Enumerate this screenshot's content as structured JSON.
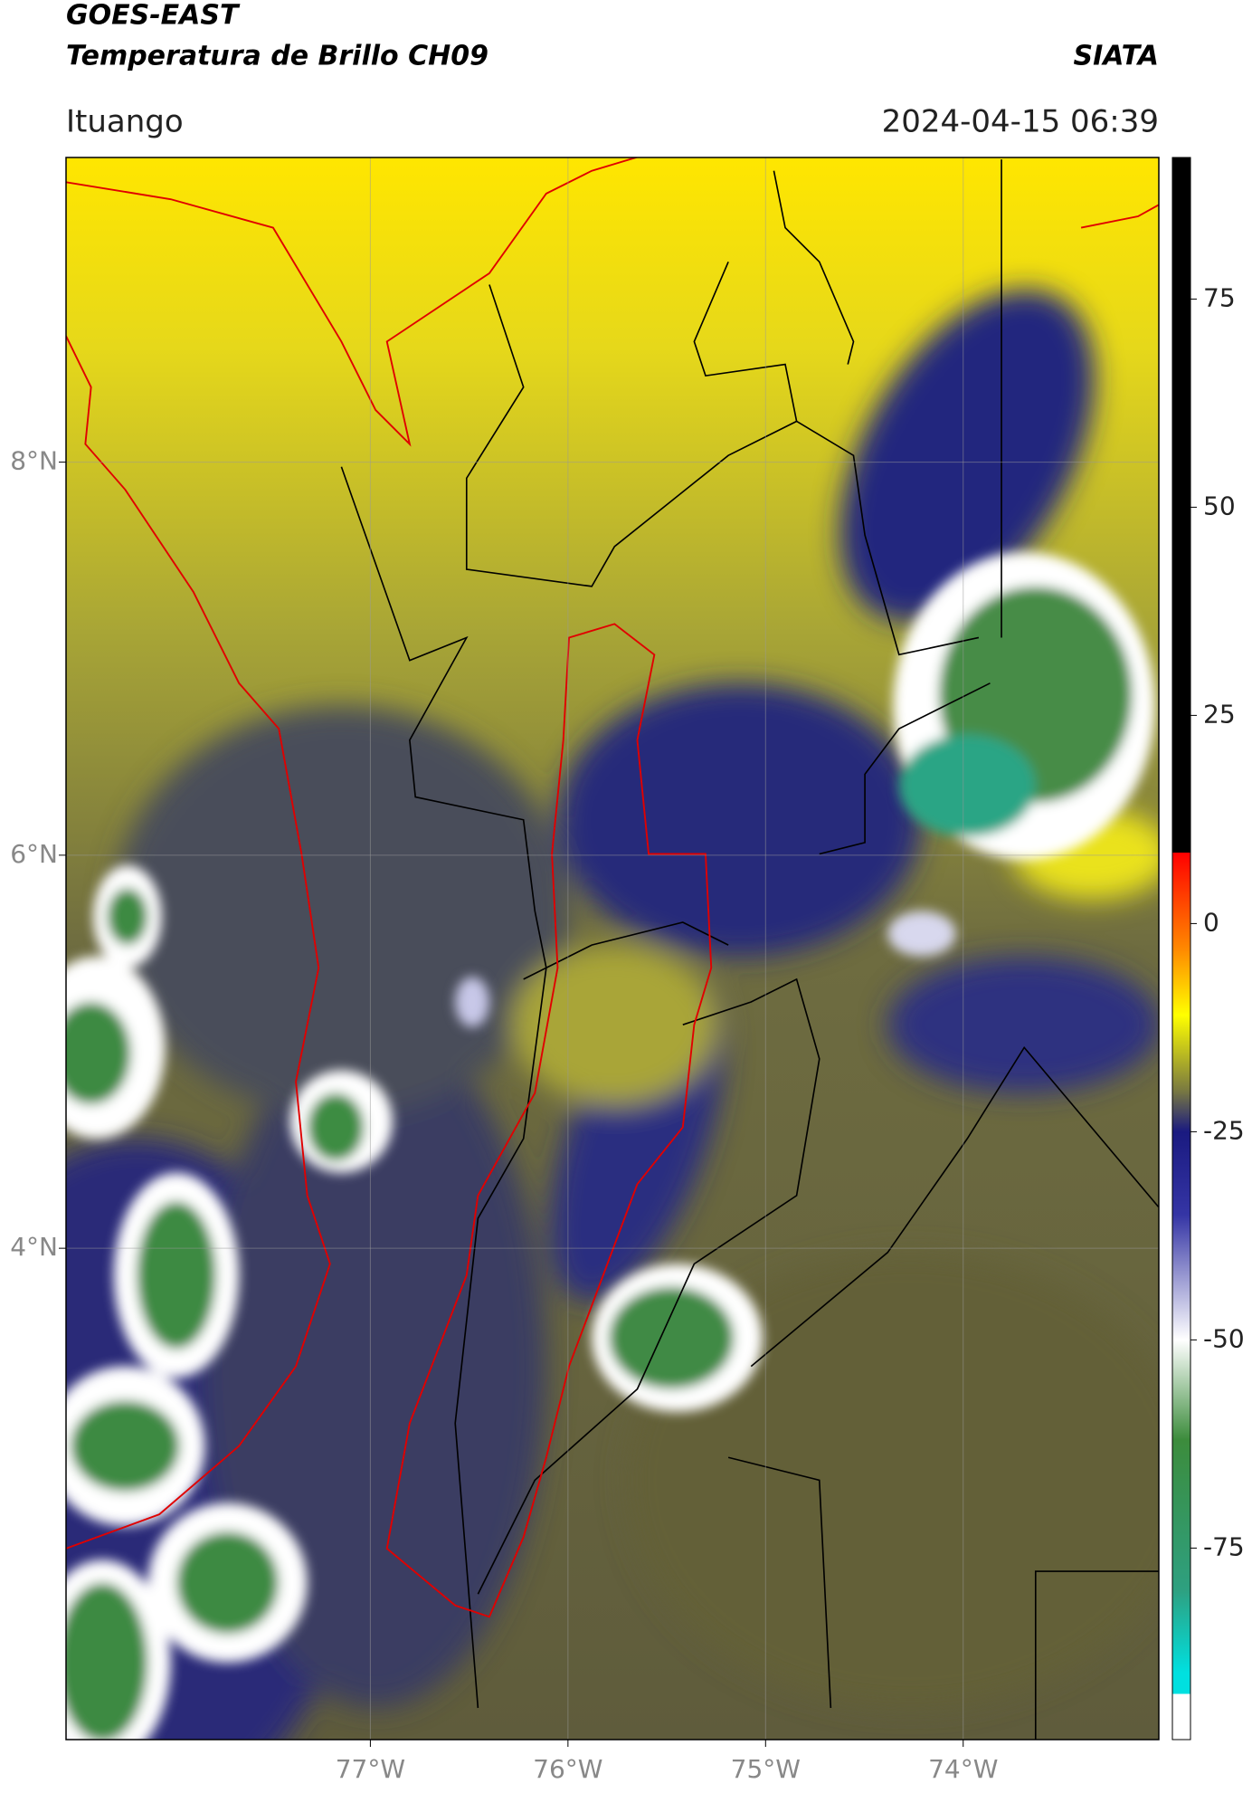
{
  "header": {
    "title": "GOES-EAST",
    "subtitle": "Temperatura de Brillo CH09",
    "source": "SIATA",
    "location": "Ituango",
    "datetime": "2024-04-15 06:39"
  },
  "map": {
    "xlim": [
      -78.54,
      -73.01
    ],
    "ylim": [
      1.5,
      9.55
    ],
    "xticks": [
      {
        "value": -77,
        "label": "77°W"
      },
      {
        "value": -76,
        "label": "76°W"
      },
      {
        "value": -75,
        "label": "75°W"
      },
      {
        "value": -74,
        "label": "74°W"
      }
    ],
    "yticks": [
      {
        "value": 8,
        "label": "8°N"
      },
      {
        "value": 6,
        "label": "6°N"
      },
      {
        "value": 4,
        "label": "4°N"
      }
    ],
    "grid": true
  },
  "colorbar": {
    "ylim": [
      -98,
      92
    ],
    "yticks": [
      75,
      50,
      25,
      0,
      -25,
      -50,
      -75
    ],
    "stops": [
      {
        "value": 92,
        "color": "#000000"
      },
      {
        "value": 8.5,
        "color": "#000000"
      },
      {
        "value": 8.5,
        "color": "#ff0000"
      },
      {
        "value": -3,
        "color": "#ff8800"
      },
      {
        "value": -11,
        "color": "#ffff00"
      },
      {
        "value": -20,
        "color": "#7a7a40"
      },
      {
        "value": -25,
        "color": "#1a1a80"
      },
      {
        "value": -35,
        "color": "#3535a5"
      },
      {
        "value": -50,
        "color": "#ffffff"
      },
      {
        "value": -62,
        "color": "#3c8c3c"
      },
      {
        "value": -80,
        "color": "#2ea080"
      },
      {
        "value": -90,
        "color": "#00e0e0"
      },
      {
        "value": -92.5,
        "color": "#00e0e0"
      },
      {
        "value": -92.5,
        "color": "#ffffff"
      },
      {
        "value": -98,
        "color": "#ffffff"
      }
    ]
  }
}
